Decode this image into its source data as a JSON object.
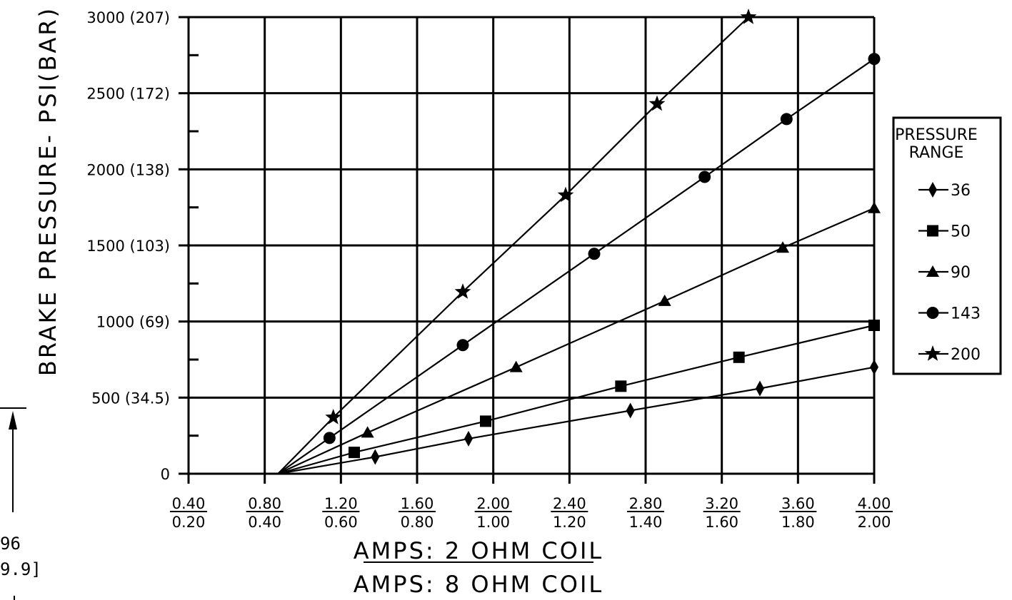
{
  "chart_data": {
    "type": "line",
    "xlabel_top": "AMPS: 2 OHM COIL",
    "xlabel_bottom": "AMPS: 8 OHM COIL",
    "ylabel": "BRAKE PRESSURE- PSI(BAR)",
    "x_ticks_top": [
      "0.40",
      "0.80",
      "1.20",
      "1.60",
      "2.00",
      "2.40",
      "2.80",
      "3.20",
      "3.60",
      "4.00"
    ],
    "x_ticks_bottom": [
      "0.20",
      "0.40",
      "0.60",
      "0.80",
      "1.00",
      "1.20",
      "1.40",
      "1.60",
      "1.80",
      "2.00"
    ],
    "y_ticks": [
      "0",
      "500 (34.5)",
      "1000 (69)",
      "1500 (103)",
      "2000 (138)",
      "2500 (172)",
      "3000 (207)"
    ],
    "xlim": [
      0.4,
      4.0
    ],
    "ylim": [
      0,
      3000
    ],
    "grid": true,
    "legend_title": "PRESSURE RANGE",
    "legend_position": "right",
    "series": [
      {
        "name": "36",
        "marker": "diamond",
        "origin": [
          0.87,
          0
        ],
        "x": [
          1.38,
          1.87,
          2.72,
          3.4,
          4.0
        ],
        "y": [
          110,
          230,
          415,
          560,
          700
        ]
      },
      {
        "name": "50",
        "marker": "square",
        "origin": [
          0.87,
          0
        ],
        "x": [
          1.27,
          1.96,
          2.67,
          3.29,
          4.0
        ],
        "y": [
          140,
          345,
          575,
          765,
          975
        ]
      },
      {
        "name": "90",
        "marker": "triangle",
        "origin": [
          0.87,
          0
        ],
        "x": [
          1.34,
          2.12,
          2.9,
          3.52,
          4.0
        ],
        "y": [
          270,
          700,
          1135,
          1485,
          1745
        ]
      },
      {
        "name": "143",
        "marker": "circle",
        "origin": [
          0.87,
          0
        ],
        "x": [
          1.14,
          1.84,
          2.53,
          3.11,
          3.54,
          4.0
        ],
        "y": [
          235,
          845,
          1445,
          1950,
          2330,
          2725
        ]
      },
      {
        "name": "200",
        "marker": "star",
        "origin": [
          0.87,
          0
        ],
        "x": [
          1.16,
          1.84,
          2.38,
          2.86,
          3.34
        ],
        "y": [
          370,
          1195,
          1830,
          2430,
          3000
        ]
      }
    ]
  },
  "fragment": {
    "line1": "96",
    "line2": "9.9]"
  }
}
